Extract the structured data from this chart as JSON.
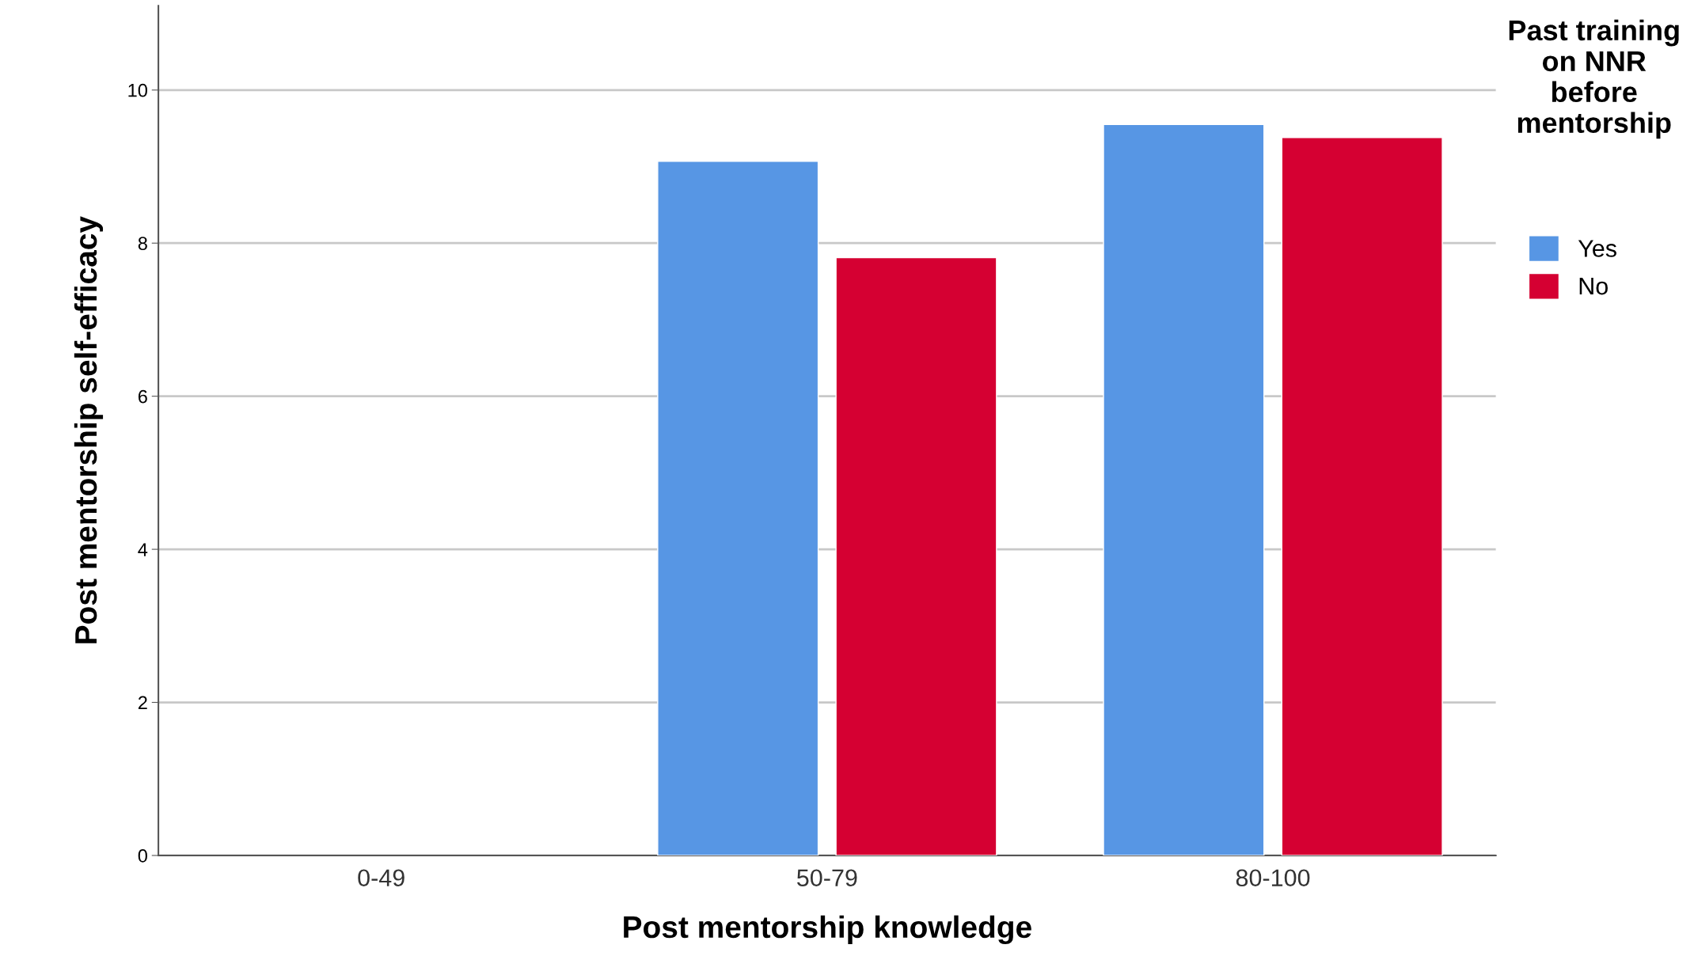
{
  "chart_data": {
    "type": "bar",
    "xlabel": "Post mentorship knowledge",
    "ylabel": "Post mentorship self-efficacy",
    "legend_title": "Past training on NNR before mentorship",
    "categories": [
      "0-49",
      "50-79",
      "80-100"
    ],
    "series": [
      {
        "name": "Yes",
        "color": "#5796e4",
        "values": [
          null,
          9.07,
          9.55
        ]
      },
      {
        "name": "No",
        "color": "#d50032",
        "values": [
          null,
          7.81,
          9.38
        ]
      }
    ],
    "ylim": [
      0,
      11.1
    ],
    "yticks": [
      0,
      2,
      4,
      6,
      8,
      10
    ],
    "grid": "y",
    "legend": "top right"
  }
}
